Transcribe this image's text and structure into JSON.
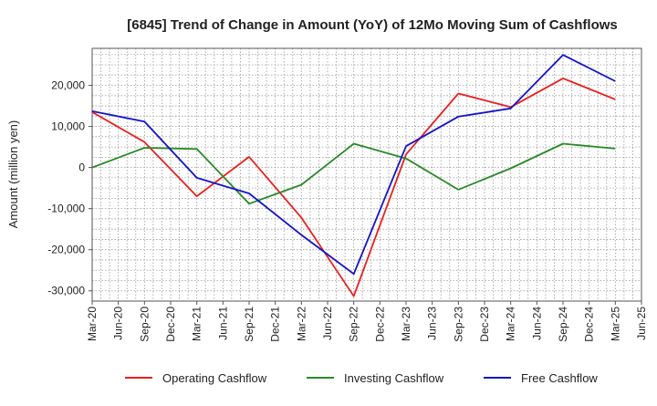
{
  "chart_data": {
    "type": "line",
    "title": "[6845]  Trend of Change in Amount (YoY) of 12Mo Moving Sum of Cashflows",
    "xlabel": "",
    "ylabel": "Amount (million yen)",
    "ylim": [
      -32500,
      29000
    ],
    "yticks": [
      20000,
      10000,
      0,
      -10000,
      -20000,
      -30000
    ],
    "ytick_labels": [
      "20,000",
      "10,000",
      "0",
      "-10,000",
      "-20,000",
      "-30,000"
    ],
    "categories": [
      "Mar-20",
      "Jun-20",
      "Sep-20",
      "Dec-20",
      "Mar-21",
      "Jun-21",
      "Sep-21",
      "Dec-21",
      "Mar-22",
      "Jun-22",
      "Sep-22",
      "Dec-22",
      "Mar-23",
      "Jun-23",
      "Sep-23",
      "Dec-23",
      "Mar-24",
      "Jun-24",
      "Sep-24",
      "Dec-24",
      "Mar-25",
      "Jun-25"
    ],
    "grid": true,
    "legend_position": "bottom",
    "series": [
      {
        "name": "Operating Cashflow",
        "color": "#e8201e",
        "points": [
          {
            "x": "Mar-20",
            "y": 13500
          },
          {
            "x": "Sep-20",
            "y": 6200
          },
          {
            "x": "Mar-21",
            "y": -7000
          },
          {
            "x": "Sep-21",
            "y": 2600
          },
          {
            "x": "Mar-22",
            "y": -12200
          },
          {
            "x": "Sep-22",
            "y": -31300
          },
          {
            "x": "Mar-23",
            "y": 3200
          },
          {
            "x": "Sep-23",
            "y": 18000
          },
          {
            "x": "Mar-24",
            "y": 14700
          },
          {
            "x": "Sep-24",
            "y": 21700
          },
          {
            "x": "Mar-25",
            "y": 16600
          }
        ]
      },
      {
        "name": "Investing Cashflow",
        "color": "#2a8a28",
        "points": [
          {
            "x": "Mar-20",
            "y": 0
          },
          {
            "x": "Sep-20",
            "y": 4800
          },
          {
            "x": "Mar-21",
            "y": 4500
          },
          {
            "x": "Sep-21",
            "y": -8800
          },
          {
            "x": "Mar-22",
            "y": -4200
          },
          {
            "x": "Sep-22",
            "y": 5800
          },
          {
            "x": "Mar-23",
            "y": 2200
          },
          {
            "x": "Sep-23",
            "y": -5400
          },
          {
            "x": "Mar-24",
            "y": -200
          },
          {
            "x": "Sep-24",
            "y": 5800
          },
          {
            "x": "Mar-25",
            "y": 4600
          }
        ]
      },
      {
        "name": "Free Cashflow",
        "color": "#1414c8",
        "points": [
          {
            "x": "Mar-20",
            "y": 13700
          },
          {
            "x": "Sep-20",
            "y": 11200
          },
          {
            "x": "Mar-21",
            "y": -2500
          },
          {
            "x": "Sep-21",
            "y": -6300
          },
          {
            "x": "Mar-22",
            "y": -16400
          },
          {
            "x": "Sep-22",
            "y": -25900
          },
          {
            "x": "Mar-23",
            "y": 5200
          },
          {
            "x": "Sep-23",
            "y": 12400
          },
          {
            "x": "Mar-24",
            "y": 14400
          },
          {
            "x": "Sep-24",
            "y": 27400
          },
          {
            "x": "Mar-25",
            "y": 21000
          }
        ]
      }
    ]
  }
}
